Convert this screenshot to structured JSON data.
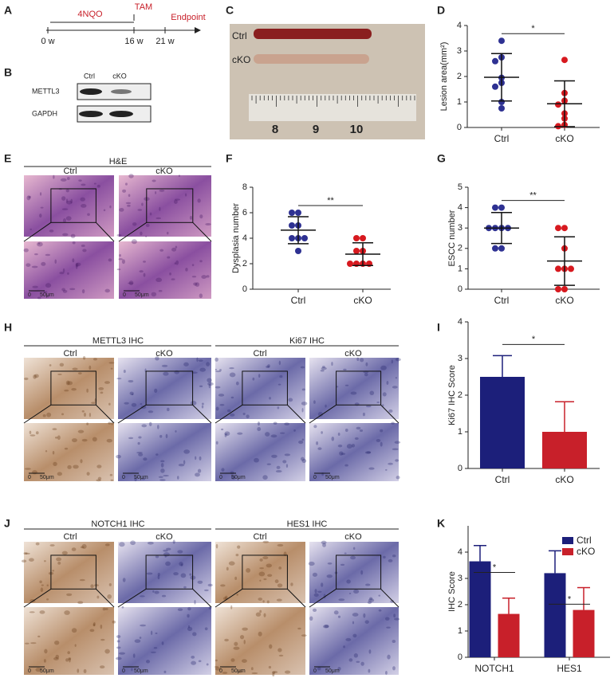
{
  "panel_labels": [
    "A",
    "B",
    "C",
    "D",
    "E",
    "F",
    "G",
    "H",
    "I",
    "J",
    "K"
  ],
  "timeline": {
    "treatments": [
      "4NQO",
      "TAM",
      "Endpoint"
    ],
    "times": [
      "0 w",
      "16 w",
      "21 w"
    ]
  },
  "western_blot": {
    "lanes": [
      "Ctrl",
      "cKO"
    ],
    "proteins": [
      "METTL3",
      "GAPDH"
    ]
  },
  "photo": {
    "rows": [
      "Ctrl",
      "cKO"
    ],
    "ruler": [
      "8",
      "9",
      "10"
    ]
  },
  "he": {
    "title": "H&E",
    "groups": [
      "Ctrl",
      "cKO"
    ]
  },
  "ihc_h": {
    "stains": [
      "METTL3 IHC",
      "Ki67 IHC"
    ],
    "groups": [
      "Ctrl",
      "cKO"
    ]
  },
  "ihc_j": {
    "stains": [
      "NOTCH1 IHC",
      "HES1 IHC"
    ],
    "groups": [
      "Ctrl",
      "cKO"
    ]
  },
  "scale_bar": {
    "zero": "0",
    "length": "50μm"
  },
  "chart_data": [
    {
      "type": "dot",
      "y_label": "Lesion area(mm²)",
      "categories": [
        "Ctrl",
        "cKO"
      ],
      "colors": [
        "#2e3192",
        "#d7191f"
      ],
      "points": [
        [
          3.4,
          2.75,
          2.6,
          1.95,
          1.75,
          1.6,
          1.0,
          0.75
        ],
        [
          2.65,
          1.35,
          1.05,
          0.9,
          0.55,
          0.35,
          0.1,
          0.05
        ]
      ],
      "means": [
        1.97,
        0.93
      ],
      "sds": [
        0.93,
        0.9
      ],
      "ylim": [
        0,
        4
      ],
      "yticks": [
        0,
        1,
        2,
        3,
        4
      ],
      "significance": "*"
    },
    {
      "type": "dot",
      "y_label": "Dysplasia number",
      "categories": [
        "Ctrl",
        "cKO"
      ],
      "colors": [
        "#2e3192",
        "#d7191f"
      ],
      "points": [
        [
          6,
          6,
          5,
          5,
          4,
          4,
          4,
          3
        ],
        [
          4,
          4,
          3,
          3,
          2,
          2,
          2,
          2
        ]
      ],
      "means": [
        4.63,
        2.75
      ],
      "sds": [
        1.06,
        0.89
      ],
      "ylim": [
        0,
        8
      ],
      "yticks": [
        0,
        2,
        4,
        6,
        8
      ],
      "significance": "**"
    },
    {
      "type": "dot",
      "y_label": "ESCC number",
      "categories": [
        "Ctrl",
        "cKO"
      ],
      "colors": [
        "#2e3192",
        "#d7191f"
      ],
      "points": [
        [
          4,
          4,
          3,
          3,
          3,
          2,
          2,
          3
        ],
        [
          3,
          3,
          2,
          1,
          1,
          1,
          0,
          0
        ]
      ],
      "means": [
        3,
        1.38
      ],
      "sds": [
        0.76,
        1.19
      ],
      "ylim": [
        0,
        5
      ],
      "yticks": [
        0,
        1,
        2,
        3,
        4,
        5
      ],
      "significance": "**"
    },
    {
      "type": "bar",
      "y_label": "Ki67 IHC Score",
      "categories": [
        "Ctrl",
        "cKO"
      ],
      "colors": [
        "#1c1f7a",
        "#c8202a"
      ],
      "values": [
        2.5,
        1.0
      ],
      "errors": [
        0.58,
        0.82
      ],
      "ylim": [
        0,
        4
      ],
      "yticks": [
        0,
        1,
        2,
        3,
        4
      ],
      "significance": "*"
    },
    {
      "type": "grouped_bar",
      "y_label": "IHC Score",
      "categories": [
        "NOTCH1",
        "HES1"
      ],
      "series": [
        {
          "name": "Ctrl",
          "color": "#1c1f7a",
          "values": [
            3.65,
            3.2
          ],
          "errors": [
            0.6,
            0.85
          ]
        },
        {
          "name": "cKO",
          "color": "#c8202a",
          "values": [
            1.65,
            1.8
          ],
          "errors": [
            0.6,
            0.85
          ]
        }
      ],
      "ylim": [
        0,
        5
      ],
      "yticks": [
        0,
        1,
        2,
        3,
        4
      ],
      "significance": [
        "*",
        "*"
      ],
      "legend": "upper right"
    }
  ]
}
